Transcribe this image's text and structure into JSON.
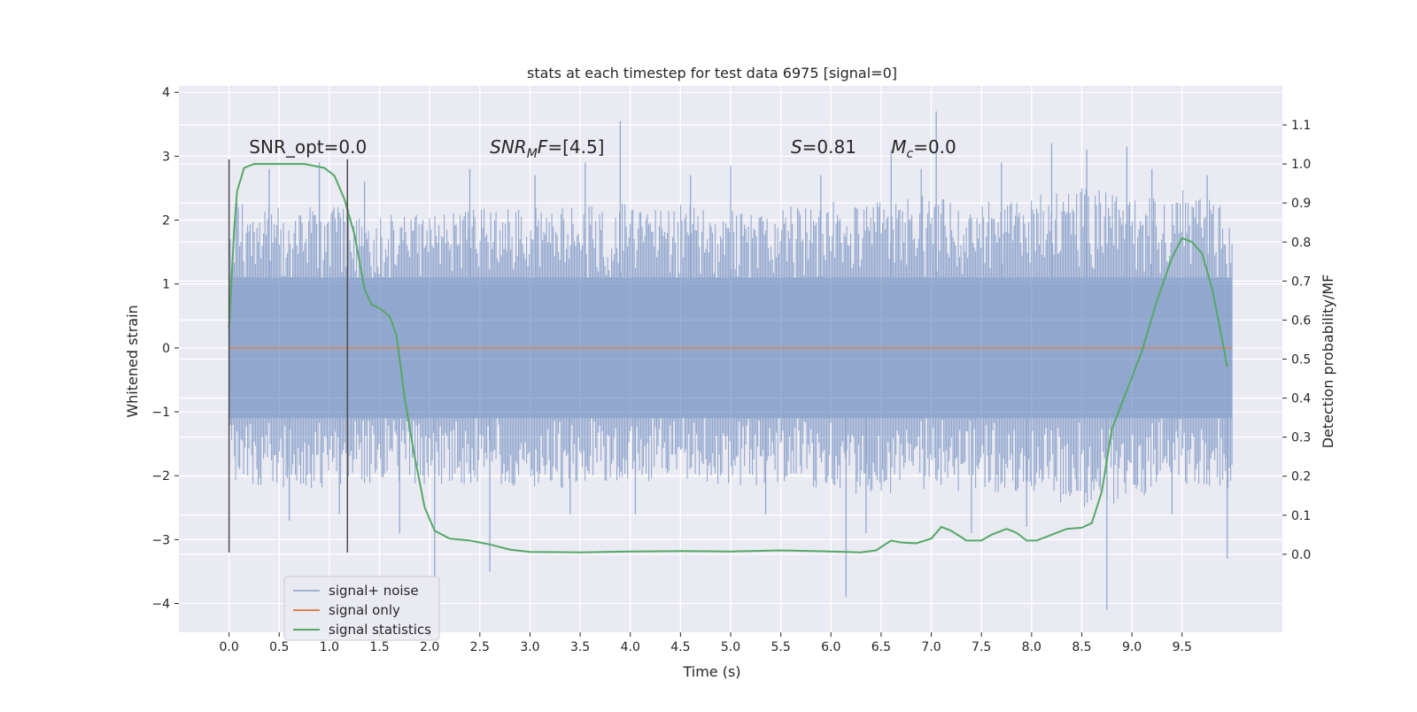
{
  "chart_data": {
    "type": "line",
    "title": "stats at each timestep for test data 6975 [signal=0]",
    "xlabel": "Time (s)",
    "ylabel": "Whitened strain",
    "ylabel_right": "Detection probability/MF",
    "xlim": [
      -0.5,
      10.5
    ],
    "ylim": [
      -4.45,
      4.1
    ],
    "ylim_right": [
      -0.2,
      1.2
    ],
    "xticks": [
      0.0,
      0.5,
      1.0,
      1.5,
      2.0,
      2.5,
      3.0,
      3.5,
      4.0,
      4.5,
      5.0,
      5.5,
      6.0,
      6.5,
      7.0,
      7.5,
      8.0,
      8.5,
      9.0,
      9.5
    ],
    "xtick_labels": [
      "0.0",
      "0.5",
      "1.0",
      "1.5",
      "2.0",
      "2.5",
      "3.0",
      "3.5",
      "4.0",
      "4.5",
      "5.0",
      "5.5",
      "6.0",
      "6.5",
      "7.0",
      "7.5",
      "8.0",
      "8.5",
      "9.0",
      "9.5"
    ],
    "yticks": [
      -4,
      -3,
      -2,
      -1,
      0,
      1,
      2,
      3,
      4
    ],
    "ytick_labels": [
      "−4",
      "−3",
      "−2",
      "−1",
      "0",
      "1",
      "2",
      "3",
      "4"
    ],
    "yticks_right": [
      0.0,
      0.1,
      0.2,
      0.3,
      0.4,
      0.5,
      0.6,
      0.7,
      0.8,
      0.9,
      1.0,
      1.1
    ],
    "ytick_labels_right": [
      "0.0",
      "0.1",
      "0.2",
      "0.3",
      "0.4",
      "0.5",
      "0.6",
      "0.7",
      "0.8",
      "0.9",
      "1.0",
      "1.1"
    ],
    "grid": true,
    "legend_position": "lower-left",
    "series": [
      {
        "name": "signal+ noise",
        "color": "#4c72b0",
        "opacity": 0.55,
        "x_range": [
          0.0,
          10.0
        ],
        "envelope_upper": [
          [
            0.0,
            2.3
          ],
          [
            0.5,
            2.2
          ],
          [
            1.0,
            2.3
          ],
          [
            1.5,
            2.1
          ],
          [
            2.0,
            2.1
          ],
          [
            2.5,
            2.2
          ],
          [
            3.0,
            2.2
          ],
          [
            3.5,
            2.2
          ],
          [
            4.0,
            2.3
          ],
          [
            4.5,
            2.3
          ],
          [
            5.0,
            2.2
          ],
          [
            5.5,
            2.2
          ],
          [
            6.0,
            2.3
          ],
          [
            6.5,
            2.3
          ],
          [
            7.0,
            2.4
          ],
          [
            7.5,
            2.3
          ],
          [
            8.0,
            2.4
          ],
          [
            8.5,
            2.5
          ],
          [
            9.0,
            2.4
          ],
          [
            9.5,
            2.5
          ],
          [
            10.0,
            2.2
          ]
        ],
        "envelope_lower": [
          [
            0.0,
            -2.1
          ],
          [
            0.5,
            -2.2
          ],
          [
            1.0,
            -2.2
          ],
          [
            1.5,
            -2.1
          ],
          [
            2.0,
            -2.2
          ],
          [
            2.5,
            -2.1
          ],
          [
            3.0,
            -2.2
          ],
          [
            3.5,
            -2.2
          ],
          [
            4.0,
            -2.1
          ],
          [
            4.5,
            -2.1
          ],
          [
            5.0,
            -2.2
          ],
          [
            5.5,
            -2.1
          ],
          [
            6.0,
            -2.3
          ],
          [
            6.5,
            -2.3
          ],
          [
            7.0,
            -2.2
          ],
          [
            7.5,
            -2.3
          ],
          [
            8.0,
            -2.3
          ],
          [
            8.5,
            -2.5
          ],
          [
            9.0,
            -2.4
          ],
          [
            9.5,
            -2.2
          ],
          [
            10.0,
            -2.2
          ]
        ],
        "spikes": [
          [
            0.4,
            2.8
          ],
          [
            0.6,
            -2.7
          ],
          [
            0.9,
            2.9
          ],
          [
            1.1,
            -2.6
          ],
          [
            1.35,
            2.6
          ],
          [
            1.7,
            -2.9
          ],
          [
            2.05,
            -3.6
          ],
          [
            2.4,
            2.8
          ],
          [
            2.6,
            -3.5
          ],
          [
            3.05,
            2.7
          ],
          [
            3.4,
            -2.6
          ],
          [
            3.55,
            2.9
          ],
          [
            3.9,
            3.55
          ],
          [
            4.05,
            -2.6
          ],
          [
            4.6,
            2.7
          ],
          [
            5.0,
            2.85
          ],
          [
            5.35,
            -2.6
          ],
          [
            5.9,
            2.7
          ],
          [
            6.15,
            -3.9
          ],
          [
            6.35,
            -2.9
          ],
          [
            6.6,
            3.1
          ],
          [
            6.9,
            2.8
          ],
          [
            7.05,
            3.7
          ],
          [
            7.4,
            -2.9
          ],
          [
            7.7,
            2.9
          ],
          [
            7.95,
            -2.8
          ],
          [
            8.2,
            3.2
          ],
          [
            8.55,
            3.1
          ],
          [
            8.75,
            -4.1
          ],
          [
            8.95,
            3.15
          ],
          [
            9.2,
            2.8
          ],
          [
            9.4,
            -2.6
          ],
          [
            9.75,
            2.7
          ],
          [
            9.95,
            -3.3
          ]
        ]
      },
      {
        "name": "signal only",
        "color": "#dd8452",
        "x": [
          0.0,
          10.0
        ],
        "y": [
          0.0,
          0.0
        ]
      },
      {
        "name": "signal statistics",
        "color": "#55a868",
        "axis": "right",
        "x": [
          0.0,
          0.05,
          0.08,
          0.15,
          0.25,
          0.5,
          0.75,
          0.95,
          1.05,
          1.15,
          1.25,
          1.35,
          1.42,
          1.5,
          1.6,
          1.67,
          1.75,
          1.85,
          1.95,
          2.05,
          2.2,
          2.4,
          2.6,
          2.8,
          3.0,
          3.5,
          4.0,
          4.5,
          5.0,
          5.5,
          6.0,
          6.3,
          6.45,
          6.6,
          6.7,
          6.85,
          7.0,
          7.1,
          7.2,
          7.35,
          7.5,
          7.6,
          7.75,
          7.85,
          7.95,
          8.05,
          8.2,
          8.35,
          8.5,
          8.6,
          8.7,
          8.8,
          8.95,
          9.1,
          9.25,
          9.4,
          9.5,
          9.6,
          9.7,
          9.8,
          9.9,
          9.95
        ],
        "y": [
          0.58,
          0.83,
          0.93,
          0.99,
          1.0,
          1.0,
          1.0,
          0.99,
          0.97,
          0.91,
          0.82,
          0.68,
          0.64,
          0.63,
          0.61,
          0.56,
          0.4,
          0.25,
          0.12,
          0.06,
          0.04,
          0.035,
          0.025,
          0.012,
          0.006,
          0.005,
          0.007,
          0.008,
          0.007,
          0.01,
          0.007,
          0.005,
          0.01,
          0.035,
          0.03,
          0.028,
          0.04,
          0.07,
          0.06,
          0.035,
          0.035,
          0.05,
          0.065,
          0.055,
          0.035,
          0.035,
          0.05,
          0.065,
          0.068,
          0.08,
          0.16,
          0.32,
          0.42,
          0.52,
          0.65,
          0.76,
          0.81,
          0.8,
          0.77,
          0.68,
          0.55,
          0.48
        ]
      }
    ],
    "vlines": [
      {
        "x": 0.0,
        "ymin": -3.2,
        "ymax": 2.95,
        "color": "#4d4d4d"
      },
      {
        "x": 1.18,
        "ymin": -3.2,
        "ymax": 2.95,
        "color": "#4d4d4d"
      }
    ],
    "annotations": [
      {
        "x": 0.2,
        "y": 3.05,
        "parts": [
          {
            "text": "SNR_opt=0.0"
          }
        ]
      },
      {
        "x": 2.6,
        "y": 3.05,
        "parts": [
          {
            "text": "SNR",
            "italic": true
          },
          {
            "text": "M",
            "italic": true,
            "sub": true
          },
          {
            "text": "F",
            "italic": true
          },
          {
            "text": "=[4.5]"
          }
        ]
      },
      {
        "x": 5.6,
        "y": 3.05,
        "parts": [
          {
            "text": "S",
            "italic": true
          },
          {
            "text": "=0.81"
          }
        ]
      },
      {
        "x": 6.6,
        "y": 3.05,
        "parts": [
          {
            "text": "M",
            "italic": true
          },
          {
            "text": "c",
            "italic": true,
            "sub": true
          },
          {
            "text": "=0.0"
          }
        ]
      }
    ],
    "background_color": "#eaeaf2",
    "grid_color": "#ffffff"
  }
}
